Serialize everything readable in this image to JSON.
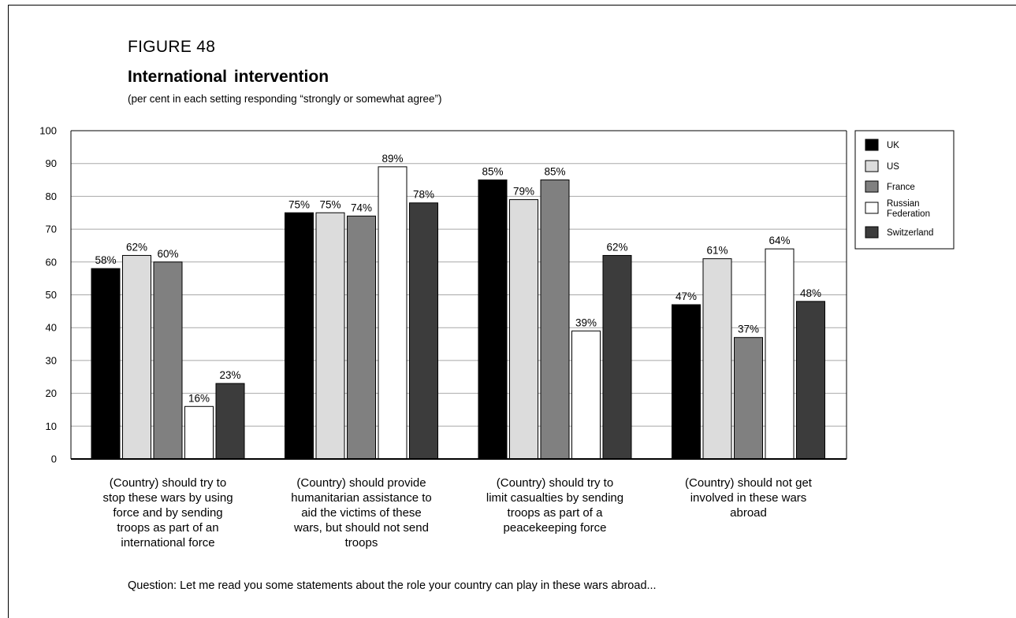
{
  "figure_label": "FIGURE 48",
  "title": "International intervention",
  "subtitle": "(per cent in each setting responding “strongly or somewhat agree”)",
  "question": "Question: Let me read you some statements about the role your country can play in these wars abroad...",
  "chart_data": {
    "type": "bar",
    "ylim": [
      0,
      100
    ],
    "yticks": [
      0,
      10,
      20,
      30,
      40,
      50,
      60,
      70,
      80,
      90,
      100
    ],
    "grid": true,
    "legend_position": "right",
    "categories": [
      [
        "(Country) should try to",
        "stop these wars by using",
        "force and by sending",
        "troops as part of an",
        "international force"
      ],
      [
        "(Country) should provide",
        "humanitarian assistance to",
        "aid the victims of these",
        "wars, but should not send",
        "troops"
      ],
      [
        "(Country) should try to",
        "limit casualties by sending",
        "troops as part of a",
        "peacekeeping force"
      ],
      [
        "(Country) should not get",
        "involved in these wars",
        "abroad"
      ]
    ],
    "series": [
      {
        "name": "UK",
        "color": "#000000",
        "values": [
          58,
          75,
          85,
          47
        ],
        "labels": [
          "58%",
          "75%",
          "85%",
          "47%"
        ]
      },
      {
        "name": "US",
        "color": "#dcdcdc",
        "values": [
          62,
          75,
          79,
          61
        ],
        "labels": [
          "62%",
          "75%",
          "79%",
          "61%"
        ]
      },
      {
        "name": "France",
        "color": "#808080",
        "values": [
          60,
          74,
          85,
          37
        ],
        "labels": [
          "60%",
          "74%",
          "85%",
          "37%"
        ]
      },
      {
        "name": "Russian Federation",
        "legend_lines": [
          "Russian",
          "Federation"
        ],
        "color": "#ffffff",
        "values": [
          16,
          89,
          39,
          64
        ],
        "labels": [
          "16%",
          "89%",
          "39%",
          "64%"
        ]
      },
      {
        "name": "Switzerland",
        "color": "#3c3c3c",
        "values": [
          23,
          78,
          62,
          48
        ],
        "labels": [
          "23%",
          "78%",
          "62%",
          "48%"
        ]
      }
    ]
  }
}
